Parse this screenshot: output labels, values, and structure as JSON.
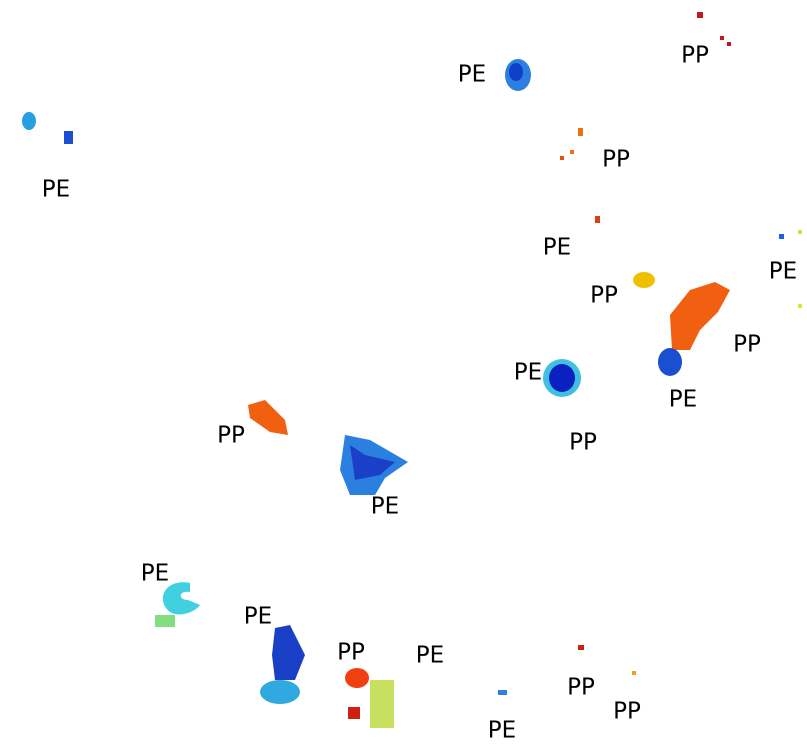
{
  "labels": [
    "PE",
    "PP",
    "PE",
    "PP",
    "PE",
    "PE",
    "PP",
    "PP",
    "PE",
    "PE",
    "PP",
    "PP",
    "PE",
    "PE",
    "PE",
    "PP",
    "PE",
    "PP",
    "PP",
    "PE"
  ]
}
